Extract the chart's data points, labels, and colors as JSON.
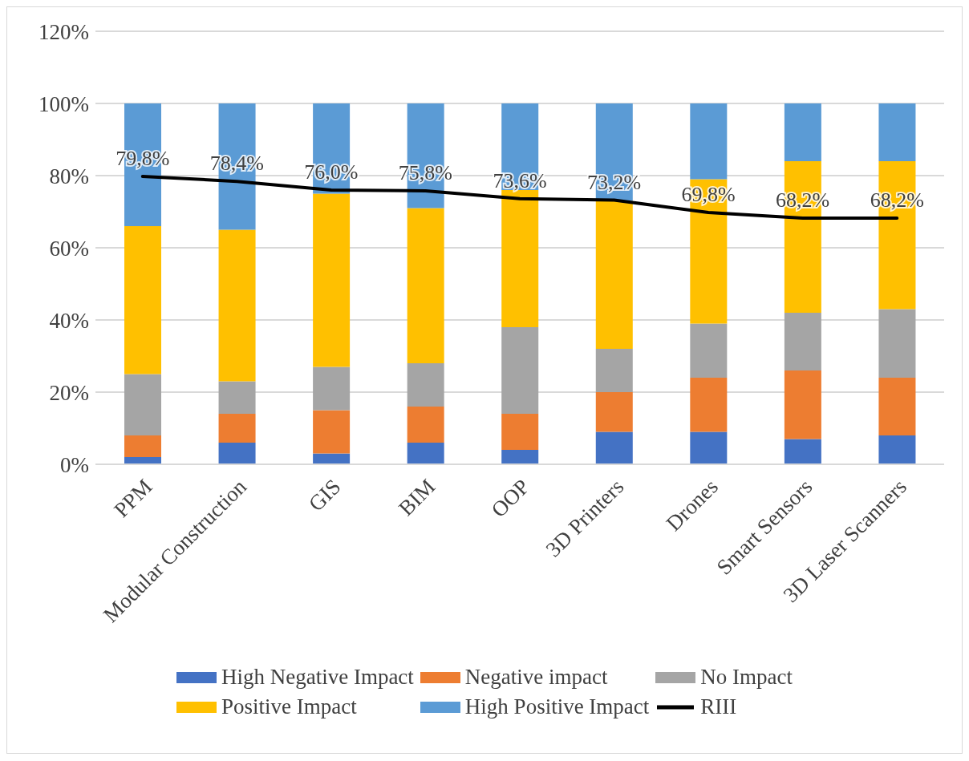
{
  "chart_data": {
    "type": "bar",
    "stacked": true,
    "categories": [
      "PPM",
      "Modular Construction",
      "GIS",
      "BIM",
      "OOP",
      "3D Printers",
      "Drones",
      "Smart Sensors",
      "3D Laser Scanners"
    ],
    "series": [
      {
        "name": "High Negative Impact",
        "color": "#4472c4",
        "values": [
          2,
          6,
          3,
          6,
          4,
          9,
          9,
          7,
          8
        ]
      },
      {
        "name": "Negative impact",
        "color": "#ed7d31",
        "values": [
          6,
          8,
          12,
          10,
          10,
          11,
          15,
          19,
          16
        ]
      },
      {
        "name": "No Impact",
        "color": "#a5a5a5",
        "values": [
          17,
          9,
          12,
          12,
          24,
          12,
          15,
          16,
          19
        ]
      },
      {
        "name": "Positive Impact",
        "color": "#ffc000",
        "values": [
          41,
          42,
          48,
          43,
          38,
          41,
          40,
          42,
          41
        ]
      },
      {
        "name": "High Positive Impact",
        "color": "#5b9bd5",
        "values": [
          34,
          35,
          25,
          29,
          24,
          27,
          21,
          16,
          16
        ]
      },
      {
        "name": "RIII",
        "type": "line",
        "color": "#000000",
        "values": [
          79.8,
          78.4,
          76.0,
          75.8,
          73.6,
          73.2,
          69.8,
          68.2,
          68.2
        ],
        "value_labels": [
          "79,8%",
          "78,4%",
          "76,0%",
          "75,8%",
          "73,6%",
          "73,2%",
          "69,8%",
          "68,2%",
          "68,2%"
        ]
      }
    ],
    "ylim": [
      0,
      120
    ],
    "yticks": [
      {
        "value": 0,
        "label": "0%"
      },
      {
        "value": 20,
        "label": "20%"
      },
      {
        "value": 40,
        "label": "40%"
      },
      {
        "value": 60,
        "label": "60%"
      },
      {
        "value": 80,
        "label": "80%"
      },
      {
        "value": 100,
        "label": "100%"
      },
      {
        "value": 120,
        "label": "120%"
      }
    ],
    "grid": "y",
    "legend": "bottom",
    "marker": "none",
    "line_style": "solid"
  }
}
